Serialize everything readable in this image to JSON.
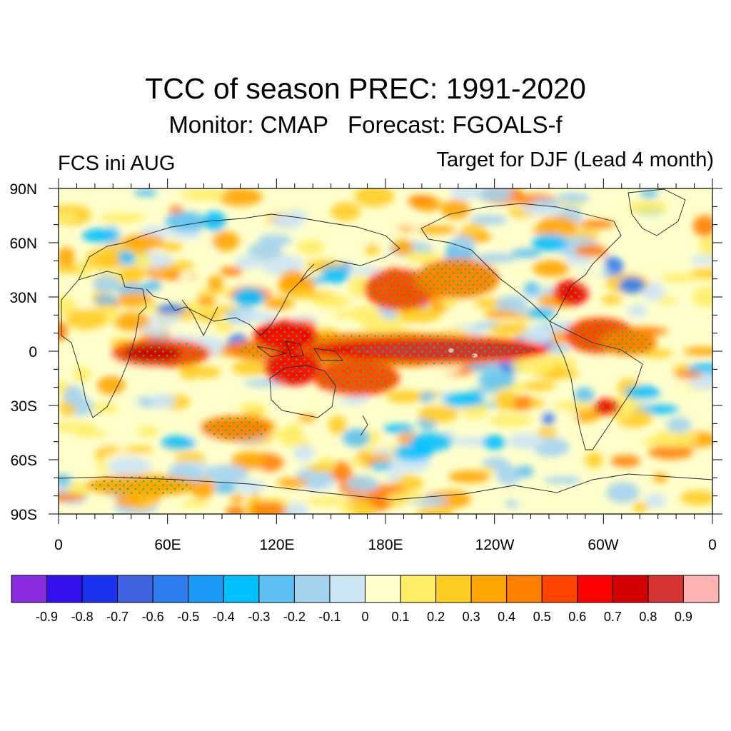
{
  "title": "TCC of season PREC: 1991-2020",
  "subtitle": "Monitor: CMAP   Forecast: FGOALS-f",
  "left_label": "FCS ini AUG",
  "right_label": "Target for DJF (Lead 4 month)",
  "map": {
    "lat_ticks": [
      "90N",
      "60N",
      "30N",
      "0",
      "30S",
      "60S",
      "90S"
    ],
    "lon_ticks": [
      "0",
      "60E",
      "120E",
      "180E",
      "120W",
      "60W",
      "0"
    ],
    "projection": "cylindrical equidistant",
    "field": "temporal correlation coefficient (TCC) of seasonal precipitation",
    "stippling": "green dots mark significant correlation",
    "stipple_color": "#22bb22",
    "coastline_color": "#222222"
  },
  "colorbar": {
    "labels": [
      "-0.9",
      "-0.8",
      "-0.7",
      "-0.6",
      "-0.5",
      "-0.4",
      "-0.3",
      "-0.2",
      "-0.1",
      "0",
      "0.1",
      "0.2",
      "0.3",
      "0.4",
      "0.5",
      "0.6",
      "0.7",
      "0.8",
      "0.9"
    ],
    "colors": [
      "#8a2be2",
      "#3311ee",
      "#1b32ee",
      "#3f63e0",
      "#2d7cf0",
      "#1a99f5",
      "#00bfff",
      "#5cc1f2",
      "#a3d3ef",
      "#cce6f5",
      "#ffffcc",
      "#ffed66",
      "#ffcc22",
      "#ffa500",
      "#ff7f00",
      "#ff4400",
      "#ff0000",
      "#d40000",
      "#d63333",
      "#ffb3b3"
    ]
  }
}
